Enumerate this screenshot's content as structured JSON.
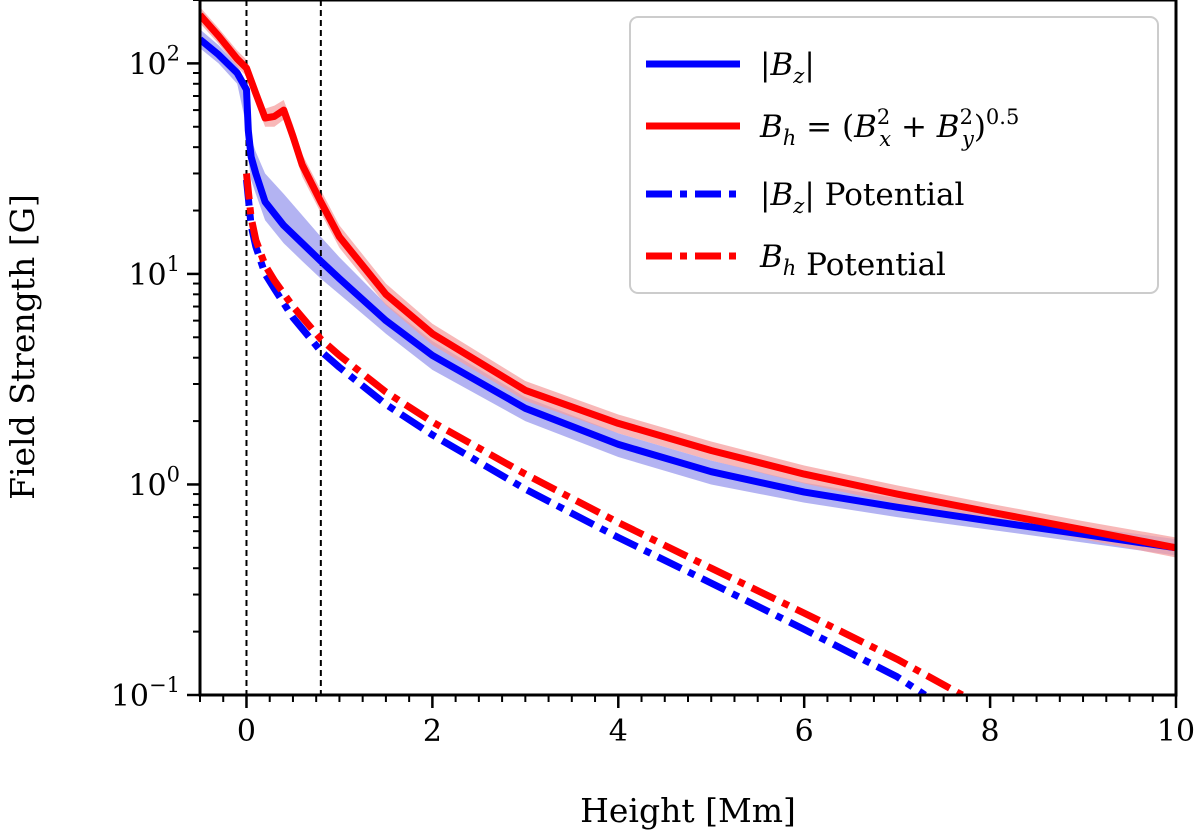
{
  "chart_data": {
    "type": "line",
    "xlabel": "Height [Mm]",
    "ylabel": "Field Strength [G]",
    "xlim": [
      -0.5,
      10
    ],
    "ylim": [
      0.1,
      200
    ],
    "yscale": "log",
    "x_ticks": [
      0,
      2,
      4,
      6,
      8,
      10
    ],
    "x_tick_labels": [
      "0",
      "2",
      "4",
      "6",
      "8",
      "10"
    ],
    "x_minor_step": 0.25,
    "y_ticks": [
      {
        "value": 100,
        "base": "10",
        "exp": "2"
      },
      {
        "value": 10,
        "base": "10",
        "exp": "1"
      },
      {
        "value": 1,
        "base": "10",
        "exp": "0"
      },
      {
        "value": 0.1,
        "base": "10",
        "exp": "−1"
      }
    ],
    "vlines": [
      0,
      0.8
    ],
    "legend_position": "top-right",
    "series": [
      {
        "name": "|Bz|",
        "legend": {
          "pre": "|",
          "var": "B",
          "sub": "z",
          "post": "|"
        },
        "color": "#0000ff",
        "band_color": "#9999ee",
        "style": "solid",
        "x": [
          -0.5,
          -0.3,
          -0.1,
          0.0,
          0.02,
          0.05,
          0.1,
          0.2,
          0.4,
          0.6,
          0.8,
          1.0,
          1.5,
          2.0,
          3.0,
          4.0,
          5.0,
          6.0,
          7.0,
          8.0,
          9.0,
          10.0
        ],
        "values": [
          130,
          110,
          90,
          75,
          48,
          36,
          30,
          22,
          17,
          14,
          11.5,
          9.5,
          6.0,
          4.1,
          2.3,
          1.55,
          1.15,
          0.92,
          0.78,
          0.67,
          0.58,
          0.5
        ],
        "band_upper": [
          145,
          122,
          98,
          80,
          56,
          44,
          38,
          30,
          24,
          19,
          15,
          12,
          7.2,
          4.8,
          2.6,
          1.75,
          1.3,
          1.02,
          0.86,
          0.73,
          0.63,
          0.55
        ],
        "band_lower": [
          118,
          100,
          80,
          50,
          35,
          28,
          24,
          18,
          14,
          11.5,
          9.5,
          8.0,
          5.2,
          3.5,
          2.0,
          1.35,
          1.0,
          0.82,
          0.7,
          0.61,
          0.53,
          0.46
        ]
      },
      {
        "name": "Bh = (Bx^2 + By^2)^0.5",
        "legend": {
          "var": "B",
          "sub": "h",
          "formula": true
        },
        "color": "#ff0000",
        "band_color": "#f5a0a0",
        "style": "solid",
        "x": [
          -0.5,
          -0.3,
          -0.1,
          0.0,
          0.1,
          0.2,
          0.3,
          0.4,
          0.5,
          0.6,
          0.8,
          1.0,
          1.5,
          2.0,
          3.0,
          4.0,
          5.0,
          6.0,
          7.0,
          8.0,
          9.0,
          10.0
        ],
        "values": [
          170,
          135,
          105,
          95,
          72,
          55,
          56,
          60,
          45,
          33,
          22,
          15,
          8.0,
          5.2,
          2.8,
          1.95,
          1.45,
          1.12,
          0.9,
          0.74,
          0.61,
          0.5
        ],
        "band_upper": [
          185,
          147,
          115,
          104,
          80,
          61,
          63,
          67,
          51,
          37,
          25,
          17,
          9.0,
          5.8,
          3.1,
          2.15,
          1.6,
          1.23,
          0.99,
          0.81,
          0.67,
          0.56
        ],
        "band_lower": [
          155,
          124,
          96,
          87,
          65,
          50,
          50,
          54,
          40,
          29,
          19.5,
          13.3,
          7.1,
          4.6,
          2.5,
          1.75,
          1.3,
          1.01,
          0.81,
          0.67,
          0.55,
          0.45
        ]
      },
      {
        "name": "|Bz| Potential",
        "legend": {
          "pre": "|",
          "var": "B",
          "sub": "z",
          "post": "|",
          "suffix": " Potential"
        },
        "color": "#0000ff",
        "style": "dashdot",
        "x": [
          0.0,
          0.05,
          0.1,
          0.2,
          0.3,
          0.5,
          0.8,
          1.0,
          1.5,
          2.0,
          3.0,
          4.0,
          5.0,
          6.0,
          7.0,
          7.3
        ],
        "values": [
          28,
          17,
          13.5,
          10,
          8.5,
          6.2,
          4.3,
          3.6,
          2.4,
          1.72,
          0.95,
          0.56,
          0.34,
          0.205,
          0.122,
          0.1
        ]
      },
      {
        "name": "Bh Potential",
        "legend": {
          "var": "B",
          "sub": "h",
          "suffix": " Potential"
        },
        "color": "#ff0000",
        "style": "dashdot",
        "x": [
          0.0,
          0.05,
          0.1,
          0.2,
          0.3,
          0.5,
          0.8,
          1.0,
          1.5,
          2.0,
          3.0,
          4.0,
          5.0,
          6.0,
          7.0,
          7.7
        ],
        "values": [
          30,
          18.5,
          14.5,
          11,
          9.3,
          7.0,
          4.9,
          4.1,
          2.75,
          1.98,
          1.12,
          0.66,
          0.4,
          0.245,
          0.148,
          0.1
        ]
      }
    ]
  }
}
